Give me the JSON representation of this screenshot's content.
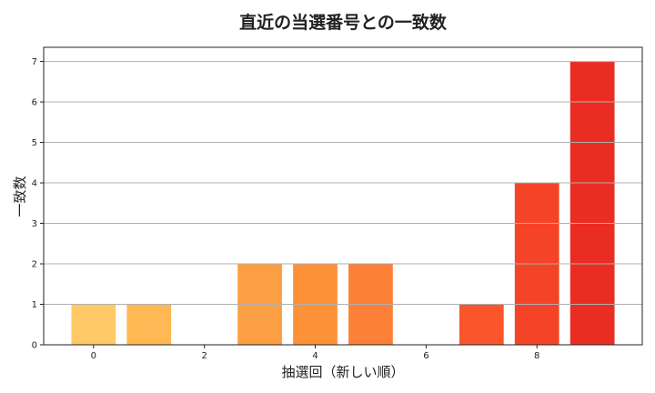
{
  "chart_data": {
    "type": "bar",
    "title": "直近の当選番号との一致数",
    "xlabel": "抽選回（新しい順）",
    "ylabel": "一致数",
    "x": [
      0,
      1,
      2,
      3,
      4,
      5,
      6,
      7,
      8,
      9
    ],
    "values": [
      1,
      1,
      0,
      2,
      2,
      2,
      0,
      1,
      4,
      7
    ],
    "colors": [
      "#fec966",
      "#feb954",
      "#fdad4a",
      "#fc9f42",
      "#fd9138",
      "#fc8037",
      "#fc6631",
      "#fb552b",
      "#f54327",
      "#ea2d22"
    ],
    "xticks": [
      0,
      2,
      4,
      6,
      8
    ],
    "yticks": [
      0,
      1,
      2,
      3,
      4,
      5,
      6,
      7
    ],
    "xlim": [
      -0.9,
      9.9
    ],
    "ylim": [
      0,
      7.35
    ],
    "grid": {
      "axis": "y",
      "color": "#b0b0b0"
    },
    "legend": null
  }
}
